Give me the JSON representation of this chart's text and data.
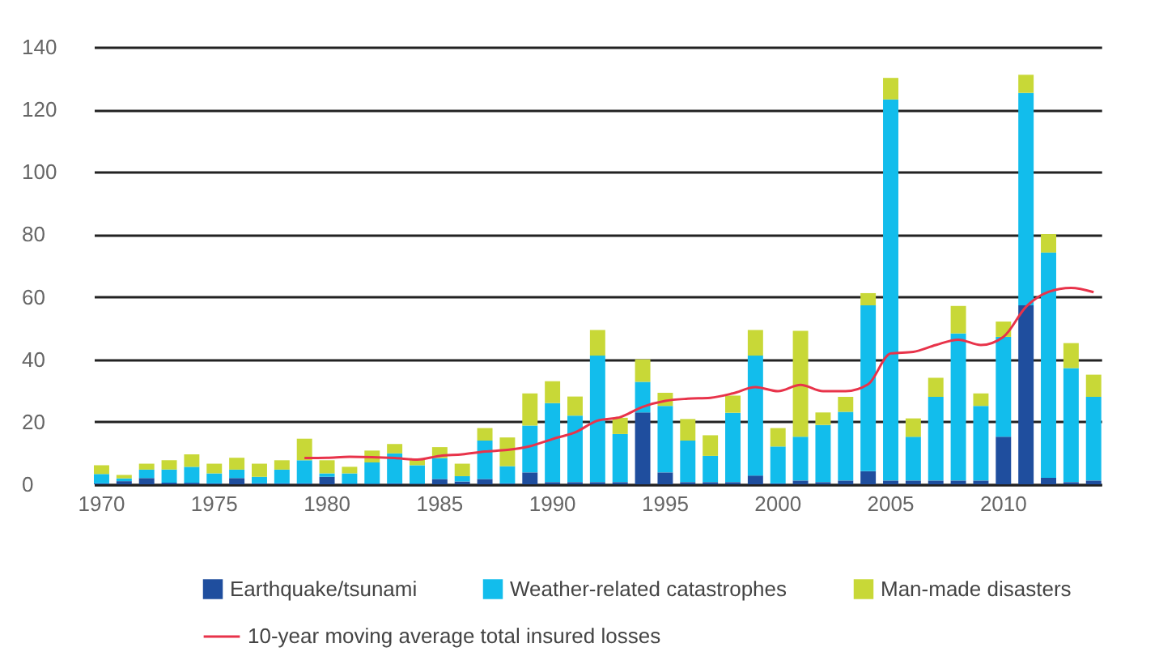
{
  "chart_data": {
    "type": "bar",
    "stacked": true,
    "grid": "y",
    "legend": "bottom",
    "categories": [
      "1970",
      null,
      null,
      null,
      null,
      "1975",
      null,
      null,
      null,
      null,
      "1980",
      null,
      null,
      null,
      null,
      "1985",
      null,
      null,
      null,
      null,
      "1990",
      null,
      null,
      null,
      null,
      "1995",
      null,
      null,
      null,
      null,
      "2000",
      null,
      null,
      null,
      null,
      "2005",
      null,
      null,
      null,
      null,
      "2010",
      null,
      null,
      null,
      null
    ],
    "ylim": [
      0,
      140
    ],
    "yticks": [
      0,
      20,
      40,
      60,
      80,
      100,
      120,
      140
    ],
    "series": [
      {
        "name": "Earthquake/tsunami",
        "color": "#1f4e9e",
        "values": [
          0.3,
          1.0,
          2,
          0.5,
          0.5,
          0.3,
          2,
          0.3,
          0.3,
          0.3,
          2.4,
          0.2,
          0.2,
          0.3,
          0.2,
          1.7,
          0.9,
          1.7,
          0.3,
          3.8,
          0.7,
          0.7,
          0.7,
          0.7,
          23,
          3.8,
          0.7,
          0.7,
          0.7,
          2.8,
          0.3,
          1.2,
          0.7,
          1.2,
          4.2,
          1.2,
          1.2,
          1.2,
          1.2,
          1.2,
          15.2,
          57.3,
          2.1,
          0.7,
          1.2
        ]
      },
      {
        "name": "Weather-related catastrophes",
        "color": "#12bdec",
        "values": [
          3.0,
          0.9,
          2.7,
          4.2,
          5.1,
          3.2,
          2.7,
          2.1,
          4.4,
          7.4,
          1.1,
          3.3,
          6.8,
          9.6,
          5.9,
          6.7,
          1.7,
          12.3,
          5.5,
          15,
          25.3,
          21.3,
          40.5,
          15.4,
          9.8,
          21.3,
          13.3,
          8.4,
          22.2,
          38.4,
          11.8,
          14,
          18.3,
          22,
          53.1,
          122,
          14,
          26.8,
          47.1,
          23.9,
          32,
          68,
          72.1,
          36.5,
          26.8
        ]
      },
      {
        "name": "Man-made disasters",
        "color": "#c8d837",
        "values": [
          2.8,
          1.1,
          1.9,
          3,
          4,
          3.1,
          3.8,
          4.2,
          3,
          6.9,
          4.2,
          2.1,
          3.8,
          3,
          2.1,
          3.5,
          4,
          4,
          9.2,
          10.3,
          7,
          6.1,
          8.2,
          5.2,
          7.2,
          4.2,
          6.9,
          6.6,
          5.5,
          8.2,
          5.9,
          33.9,
          4,
          4.8,
          3.9,
          6.9,
          5.9,
          6.1,
          8.8,
          4,
          4.9,
          5.8,
          5.9,
          8,
          7.1
        ]
      },
      {
        "name": "10-year moving average total insured losses",
        "type": "line",
        "color": "#e8334a",
        "values": [
          null,
          null,
          null,
          null,
          null,
          null,
          null,
          null,
          null,
          8.4,
          8.5,
          8.8,
          8.7,
          8.4,
          7.9,
          9.1,
          9.6,
          10.5,
          11.0,
          12.2,
          14.5,
          16.6,
          20.4,
          21.5,
          24.8,
          26.7,
          27.4,
          27.7,
          29.1,
          31.1,
          29.8,
          31.8,
          29.8,
          29.8,
          32.0,
          41.9,
          42.4,
          44.6,
          46.3,
          44.6,
          47.2,
          56.8,
          61.6,
          62.9,
          61.5
        ]
      }
    ]
  }
}
